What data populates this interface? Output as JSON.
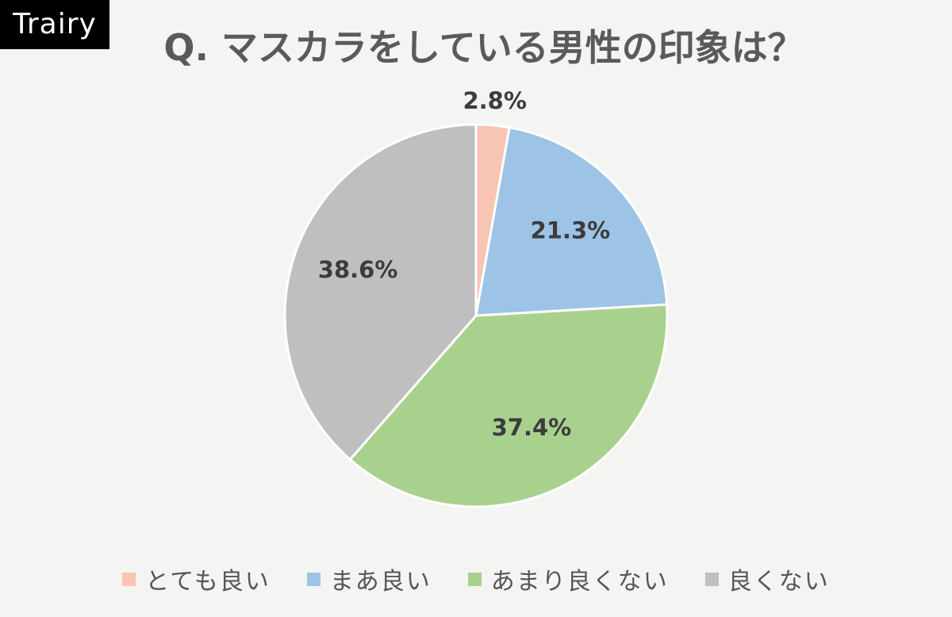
{
  "brand": {
    "label": "Trairy"
  },
  "chart_data": {
    "type": "pie",
    "title": "Q. マスカラをしている男性の印象は？",
    "categories": [
      "とても良い",
      "まあ良い",
      "あまり良くない",
      "良くない"
    ],
    "values": [
      2.8,
      21.3,
      37.4,
      38.6
    ],
    "labels": [
      "2.8%",
      "21.3%",
      "37.4%",
      "38.6%"
    ],
    "colors": [
      "#f8c4b3",
      "#9dc3e6",
      "#a9d18e",
      "#bfbfbf"
    ],
    "start": "12 o'clock",
    "direction": "clockwise",
    "legend": "bottom"
  }
}
